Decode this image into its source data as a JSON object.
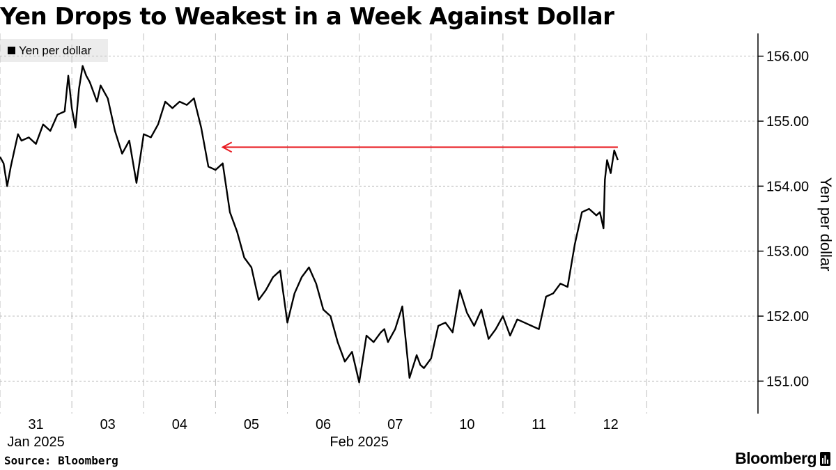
{
  "title": "Yen Drops to Weakest in a Week Against Dollar",
  "source": "Source: Bloomberg",
  "brand": "Bloomberg",
  "colors": {
    "line": "#000000",
    "arrow": "#e8191f",
    "grid": "#bdbdbd",
    "legend_bg": "#ececec"
  },
  "chart_data": {
    "type": "line",
    "ylabel": "Yen per dollar",
    "legend": [
      "Yen per dollar"
    ],
    "legend_position": "top-left",
    "grid": true,
    "ylim": [
      150.5,
      156.35
    ],
    "yticks": [
      151,
      152,
      153,
      154,
      155,
      156
    ],
    "ytick_labels": [
      "151.00",
      "152.00",
      "153.00",
      "154.00",
      "155.00",
      "156.00"
    ],
    "xlim": [
      0,
      10.55
    ],
    "xticks": [
      {
        "pos": 0.5,
        "label": "31"
      },
      {
        "pos": 1.5,
        "label": "03"
      },
      {
        "pos": 2.5,
        "label": "04"
      },
      {
        "pos": 3.5,
        "label": "05"
      },
      {
        "pos": 4.5,
        "label": "06"
      },
      {
        "pos": 5.5,
        "label": "07"
      },
      {
        "pos": 6.5,
        "label": "10"
      },
      {
        "pos": 7.5,
        "label": "11"
      },
      {
        "pos": 8.5,
        "label": "12"
      }
    ],
    "month_labels": [
      {
        "pos": 0.5,
        "label": "Jan 2025"
      },
      {
        "pos": 5.0,
        "label": "Feb 2025"
      }
    ],
    "gridlines_x": [
      0,
      1,
      2,
      3,
      4,
      5,
      6,
      7,
      8,
      9
    ],
    "series": [
      {
        "name": "Yen per dollar",
        "x": [
          0,
          0.05,
          0.1,
          0.15,
          0.2,
          0.25,
          0.3,
          0.4,
          0.5,
          0.6,
          0.7,
          0.8,
          0.9,
          0.95,
          1.0,
          1.05,
          1.1,
          1.15,
          1.2,
          1.25,
          1.3,
          1.35,
          1.4,
          1.5,
          1.6,
          1.7,
          1.8,
          1.9,
          2.0,
          2.1,
          2.2,
          2.3,
          2.4,
          2.5,
          2.6,
          2.7,
          2.8,
          2.9,
          3.0,
          3.1,
          3.2,
          3.3,
          3.4,
          3.5,
          3.6,
          3.7,
          3.8,
          3.9,
          4.0,
          4.1,
          4.2,
          4.3,
          4.4,
          4.5,
          4.6,
          4.7,
          4.8,
          4.9,
          5.0,
          5.1,
          5.2,
          5.3,
          5.35,
          5.4,
          5.5,
          5.6,
          5.7,
          5.8,
          5.85,
          5.9,
          6.0,
          6.1,
          6.2,
          6.3,
          6.4,
          6.5,
          6.6,
          6.7,
          6.8,
          6.9,
          7.0,
          7.1,
          7.2,
          7.3,
          7.4,
          7.5,
          7.6,
          7.7,
          7.8,
          7.9,
          8.0,
          8.1,
          8.2,
          8.3,
          8.35,
          8.4,
          8.42,
          8.45,
          8.5,
          8.55,
          8.6
        ],
        "y": [
          154.45,
          154.35,
          154.0,
          154.3,
          154.55,
          154.8,
          154.7,
          154.75,
          154.65,
          154.95,
          154.85,
          155.1,
          155.15,
          155.7,
          155.2,
          154.9,
          155.5,
          155.85,
          155.7,
          155.6,
          155.45,
          155.3,
          155.55,
          155.35,
          154.85,
          154.5,
          154.7,
          154.05,
          154.8,
          154.75,
          154.95,
          155.3,
          155.2,
          155.3,
          155.25,
          155.35,
          154.9,
          154.3,
          154.25,
          154.35,
          153.6,
          153.3,
          152.9,
          152.75,
          152.25,
          152.4,
          152.6,
          152.7,
          151.9,
          152.35,
          152.6,
          152.75,
          152.5,
          152.1,
          152.0,
          151.6,
          151.3,
          151.45,
          150.98,
          151.7,
          151.6,
          151.75,
          151.8,
          151.6,
          151.8,
          152.15,
          151.05,
          151.4,
          151.25,
          151.2,
          151.35,
          151.85,
          151.9,
          151.75,
          152.4,
          152.05,
          151.85,
          152.1,
          151.65,
          151.8,
          152.0,
          151.7,
          151.95,
          151.9,
          151.85,
          151.8,
          152.3,
          152.35,
          152.5,
          152.45,
          153.1,
          153.6,
          153.65,
          153.55,
          153.6,
          153.35,
          154.1,
          154.4,
          154.2,
          154.55,
          154.4
        ]
      }
    ],
    "reference_arrow": {
      "from_x": 8.6,
      "to_x": 3.1,
      "y": 154.6
    }
  }
}
